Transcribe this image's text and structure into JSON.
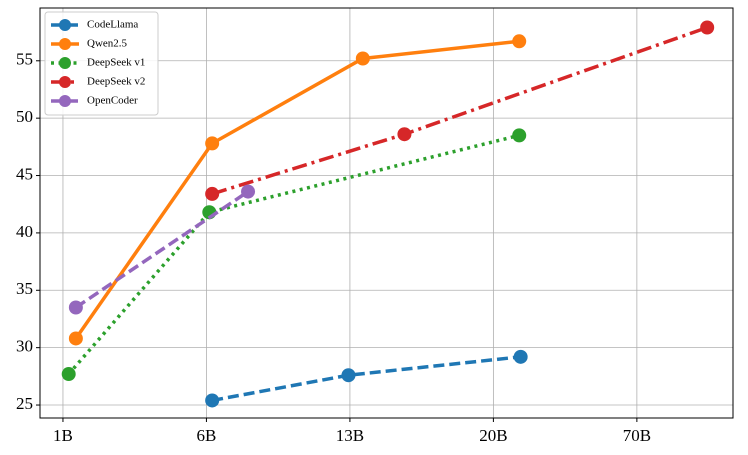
{
  "chart_data": {
    "type": "line",
    "xlim": [
      -0.16,
      4.67
    ],
    "xticks": [
      {
        "value": 0,
        "label": "1B"
      },
      {
        "value": 1,
        "label": "6B"
      },
      {
        "value": 2,
        "label": "13B"
      },
      {
        "value": 3,
        "label": "20B"
      },
      {
        "value": 4,
        "label": "70B"
      }
    ],
    "ylim": [
      23.87,
      59.6
    ],
    "yticks": [
      25,
      30,
      35,
      40,
      45,
      50,
      55
    ],
    "grid": true,
    "legend": "upper left",
    "series": [
      {
        "name": "CodeLlama",
        "color": "#1f77b4",
        "linestyle": "dashed",
        "x": [
          1.04,
          1.99,
          3.19
        ],
        "values": [
          25.4,
          27.6,
          29.2
        ]
      },
      {
        "name": "Qwen2.5",
        "color": "#ff7f0e",
        "linestyle": "solid",
        "x": [
          0.09,
          1.04,
          2.09,
          3.18
        ],
        "values": [
          30.8,
          47.8,
          55.2,
          56.7
        ]
      },
      {
        "name": "DeepSeek v1",
        "color": "#2ca02c",
        "linestyle": "dotted",
        "x": [
          0.04,
          1.02,
          3.18
        ],
        "values": [
          27.7,
          41.8,
          48.5
        ]
      },
      {
        "name": "DeepSeek v2",
        "color": "#d62728",
        "linestyle": "dashdot",
        "x": [
          1.04,
          2.38,
          4.49
        ],
        "values": [
          43.4,
          48.6,
          57.9
        ]
      },
      {
        "name": "OpenCoder",
        "color": "#9467bd",
        "linestyle": "dashed",
        "x": [
          0.09,
          1.29
        ],
        "values": [
          33.5,
          43.6
        ]
      }
    ]
  }
}
